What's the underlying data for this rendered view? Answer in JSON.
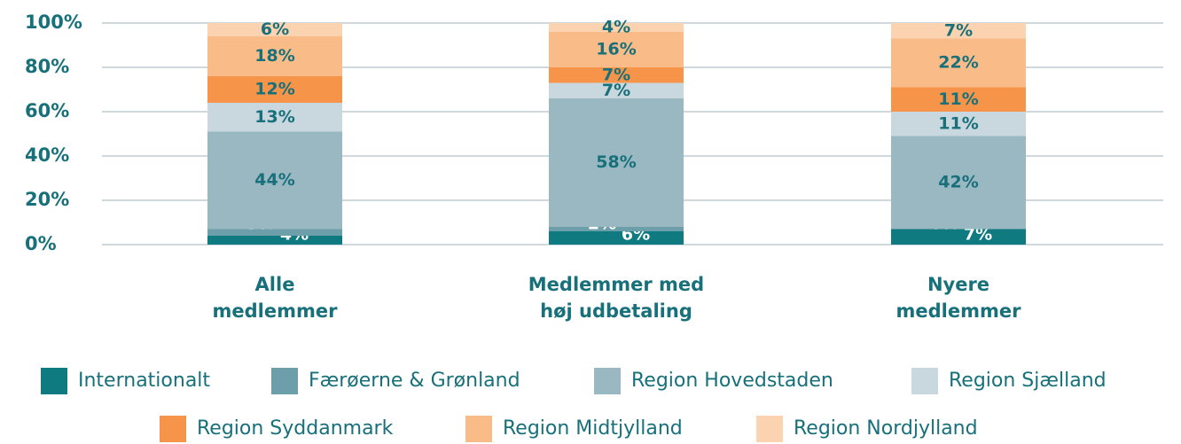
{
  "chart_data": {
    "type": "stacked_bar",
    "categories": [
      [
        "Alle",
        "medlemmer"
      ],
      [
        "Medlemmer med",
        "høj udbetaling"
      ],
      [
        "Nyere",
        "medlemmer"
      ]
    ],
    "series": [
      {
        "name": "Internationalt",
        "color": "#0f7a80",
        "label_color": "#ffffff",
        "values": [
          4,
          6,
          7
        ],
        "value_labels": [
          "4%",
          "6%",
          "7%"
        ]
      },
      {
        "name": "Færøerne & Grønland",
        "color": "#6d9fab",
        "label_color": "#ffffff",
        "values": [
          3,
          2,
          0
        ],
        "value_labels": [
          "3%",
          "2%",
          "0%"
        ]
      },
      {
        "name": "Region Hovedstaden",
        "color": "#9ab8c2",
        "label_color": "#17707a",
        "values": [
          44,
          58,
          42
        ],
        "value_labels": [
          "44%",
          "58%",
          "42%"
        ]
      },
      {
        "name": "Region Sjælland",
        "color": "#c9d7de",
        "label_color": "#17707a",
        "values": [
          13,
          7,
          11
        ],
        "value_labels": [
          "13%",
          "7%",
          "11%"
        ]
      },
      {
        "name": "Region Syddanmark",
        "color": "#f6944a",
        "label_color": "#17707a",
        "values": [
          12,
          7,
          11
        ],
        "value_labels": [
          "12%",
          "7%",
          "11%"
        ]
      },
      {
        "name": "Region Midtjylland",
        "color": "#f9bb88",
        "label_color": "#17707a",
        "values": [
          18,
          16,
          22
        ],
        "value_labels": [
          "18%",
          "16%",
          "22%"
        ]
      },
      {
        "name": "Region Nordjylland",
        "color": "#fbd3b0",
        "label_color": "#17707a",
        "values": [
          6,
          4,
          7
        ],
        "value_labels": [
          "6%",
          "4%",
          "7%"
        ]
      }
    ],
    "ylim": [
      0,
      100
    ],
    "yticks": [
      {
        "value": 0,
        "label": "0%"
      },
      {
        "value": 20,
        "label": "20%"
      },
      {
        "value": 40,
        "label": "40%"
      },
      {
        "value": 60,
        "label": "60%"
      },
      {
        "value": 80,
        "label": "80%"
      },
      {
        "value": 100,
        "label": "100%"
      }
    ],
    "grid": true
  }
}
